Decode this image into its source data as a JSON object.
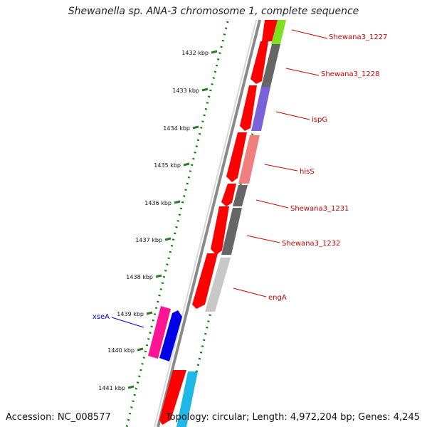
{
  "title": "Shewanella sp. ANA-3 chromosome 1, complete sequence",
  "footer": {
    "accession": "Accession: NC_008577",
    "summary": "Topology: circular; Length: 4,972,204 bp; Genes: 4,245"
  },
  "ruler": {
    "unit": "kbp",
    "ticks": [
      1432,
      1433,
      1434,
      1435,
      1436,
      1437,
      1438,
      1439,
      1440,
      1441
    ]
  },
  "colors": {
    "forward_cds": "#ff0000",
    "backbone": "#808080",
    "label_red": "#cc0000",
    "label_blue": "#0000cc",
    "dots": "#008000",
    "tick": "#2a7a2a"
  },
  "gene_labels": [
    {
      "name": "Shewana3_1227",
      "color": "#cc0000"
    },
    {
      "name": "Shewana3_1228",
      "color": "#cc0000"
    },
    {
      "name": "ispG",
      "color": "#cc0000"
    },
    {
      "name": "hisS",
      "color": "#cc0000"
    },
    {
      "name": "Shewana3_1231",
      "color": "#cc0000"
    },
    {
      "name": "Shewana3_1232",
      "color": "#cc0000"
    },
    {
      "name": "engA",
      "color": "#cc0000"
    },
    {
      "name": "xseA",
      "color": "#0000cc"
    }
  ],
  "functional_blocks_colors": [
    "#7fe01f",
    "#666666",
    "#7a63d9",
    "#f08080",
    "#666666",
    "#666666",
    "#c8c8c8",
    "#ff1493",
    "#0000e6",
    "#1fb7e6"
  ]
}
